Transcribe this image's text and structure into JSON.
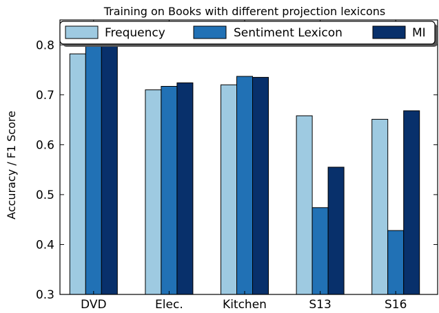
{
  "chart_data": {
    "type": "bar",
    "title": "Training on Books with different projection lexicons",
    "xlabel": "",
    "ylabel": "Accuracy / F1 Score",
    "categories": [
      "DVD",
      "Elec.",
      "Kitchen",
      "S13",
      "S16"
    ],
    "series": [
      {
        "name": "Frequency",
        "color": "#9ecae1",
        "values": [
          0.782,
          0.71,
          0.72,
          0.658,
          0.651
        ]
      },
      {
        "name": "Sentiment Lexicon",
        "color": "#2171b5",
        "values": [
          0.81,
          0.717,
          0.737,
          0.474,
          0.428
        ]
      },
      {
        "name": "MI",
        "color": "#08306b",
        "values": [
          0.804,
          0.724,
          0.735,
          0.555,
          0.668
        ]
      }
    ],
    "ylim": [
      0.3,
      0.85
    ],
    "yticks": [
      "0.3",
      "0.4",
      "0.5",
      "0.6",
      "0.7",
      "0.8"
    ],
    "grid": false,
    "legend_position": "top"
  }
}
